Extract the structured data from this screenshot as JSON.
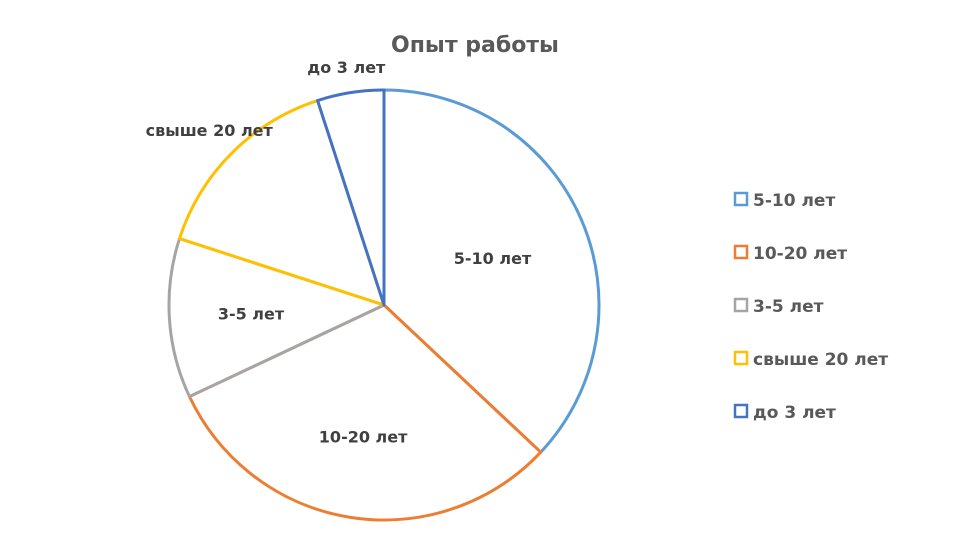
{
  "chart_data": {
    "type": "pie",
    "title": "Опыт работы",
    "legend": "right",
    "start_angle_deg": 0,
    "direction": "clockwise",
    "slices": [
      {
        "label": "5-10 лет",
        "value": 37,
        "color": "#5B9BD5"
      },
      {
        "label": "10-20 лет",
        "value": 31,
        "color": "#ED7D31"
      },
      {
        "label": "3-5 лет",
        "value": 12,
        "color": "#A5A5A5"
      },
      {
        "label": "свыше 20 лет",
        "value": 15,
        "color": "#FFC000"
      },
      {
        "label": "до 3 лет",
        "value": 5,
        "color": "#4472C4"
      }
    ]
  }
}
